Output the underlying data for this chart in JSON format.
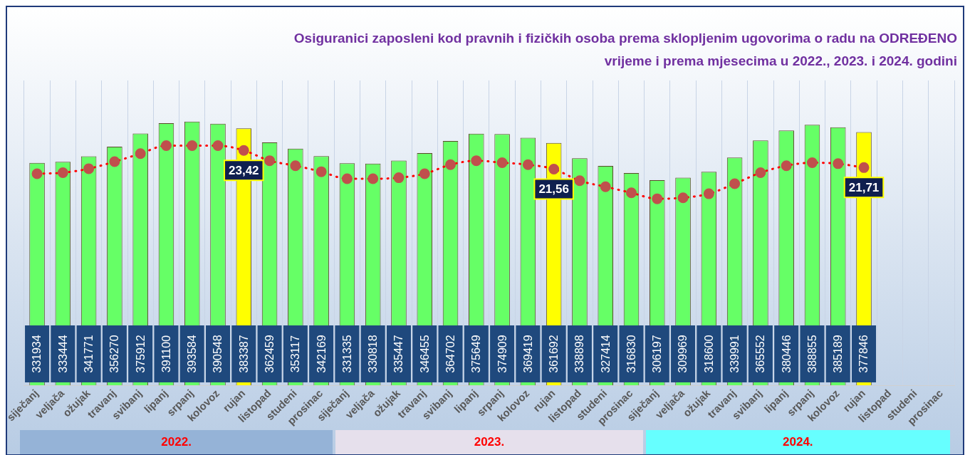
{
  "chart_data": {
    "type": "bar",
    "title": "Osiguranici zaposleni kod pravnih i fizičkih osoba prema sklopljenim ugovorima o radu na ODREĐENO vrijeme i prema mjesecima u 2022., 2023. i 2024. godini",
    "categories": [
      "siječanj",
      "veljača",
      "ožujak",
      "travanj",
      "svibanj",
      "lipanj",
      "srpanj",
      "kolovoz",
      "rujan",
      "listopad",
      "studeni",
      "prosinac",
      "siječanj",
      "veljača",
      "ožujak",
      "travanj",
      "svibanj",
      "lipanj",
      "srpanj",
      "kolovoz",
      "rujan",
      "listopad",
      "studeni",
      "prosinac",
      "siječanj",
      "veljača",
      "ožujak",
      "travanj",
      "svibanj",
      "lipanj",
      "srpanj",
      "kolovoz",
      "rujan",
      "listopad",
      "studeni",
      "prosinac"
    ],
    "series": [
      {
        "colors": [
          "#66ff66",
          "#66ff66",
          "#66ff66",
          "#66ff66",
          "#66ff66",
          "#66ff66",
          "#66ff66",
          "#66ff66",
          "#ffff00",
          "#66ff66",
          "#66ff66",
          "#66ff66",
          "#66ff66",
          "#66ff66",
          "#66ff66",
          "#66ff66",
          "#66ff66",
          "#66ff66",
          "#66ff66",
          "#66ff66",
          "#ffff00",
          "#66ff66",
          "#66ff66",
          "#66ff66",
          "#66ff66",
          "#66ff66",
          "#66ff66",
          "#66ff66",
          "#66ff66",
          "#66ff66",
          "#66ff66",
          "#66ff66",
          "#ffff00",
          "#66ff66",
          "#66ff66",
          "#66ff66"
        ],
        "values": [
          331934,
          333444,
          341771,
          356270,
          375912,
          391100,
          393584,
          390548,
          383387,
          362459,
          353117,
          342169,
          331335,
          330818,
          335447,
          346455,
          364702,
          375649,
          374909,
          369419,
          361692,
          338898,
          327414,
          316830,
          306197,
          309969,
          318600,
          339991,
          365552,
          380446,
          388855,
          385189,
          377846,
          null,
          null,
          null
        ],
        "value_labels": [
          "331934",
          "333444",
          "341771",
          "356270",
          "375912",
          "391100",
          "393584",
          "390548",
          "383387",
          "362459",
          "353117",
          "342169",
          "331335",
          "330818",
          "335447",
          "346455",
          "364702",
          "375649",
          "374909",
          "369419",
          "361692",
          "338898",
          "327414",
          "316830",
          "306197",
          "309969",
          "318600",
          "339991",
          "365552",
          "380446",
          "388855",
          "385189",
          "377846",
          null,
          null,
          null
        ]
      },
      {
        "type": "line",
        "axis": "y2",
        "color": "#c0504d",
        "line_style": "dotted",
        "marker": "circle",
        "values": [
          21.1,
          21.2,
          21.6,
          22.3,
          23.1,
          23.9,
          23.9,
          23.9,
          23.42,
          22.4,
          21.9,
          21.3,
          20.6,
          20.6,
          20.7,
          21.1,
          22.0,
          22.4,
          22.2,
          22.0,
          21.56,
          20.4,
          19.8,
          19.2,
          18.6,
          18.7,
          19.1,
          20.1,
          21.2,
          21.9,
          22.2,
          22.1,
          21.71,
          null,
          null,
          null
        ],
        "value_labels": [
          null,
          null,
          null,
          null,
          null,
          null,
          null,
          null,
          "23,42",
          null,
          null,
          null,
          null,
          null,
          null,
          null,
          null,
          null,
          null,
          null,
          "21,56",
          null,
          null,
          null,
          null,
          null,
          null,
          null,
          null,
          null,
          null,
          null,
          "21,71",
          null,
          null,
          null
        ]
      }
    ],
    "ylim": [
      0,
      455000
    ],
    "y2lim": [
      0,
      30.4
    ],
    "tick_labels": "x",
    "grid": "x",
    "legend": false,
    "annotations": [
      "2022.",
      "2023.",
      "2024."
    ]
  }
}
